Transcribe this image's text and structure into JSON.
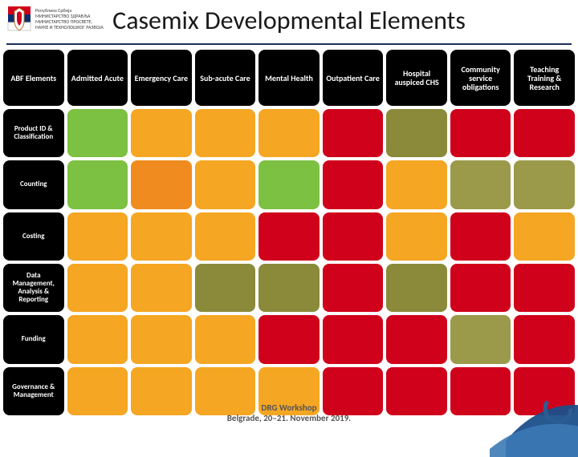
{
  "title": "Casemix Developmental Elements",
  "ministry_lines": [
    "Република Србија",
    "МИНИСТАРСТВО ЗДРАВЉА",
    "МИНИСТАРСТВО ПРОСВЕТЕ,",
    "НАУКЕ И ТЕХНОЛОШКОГ РАЗВОЈА"
  ],
  "footer_line1": "DRG Workshop",
  "footer_line2": "Belgrade, 20–21. November 2019.",
  "colors": {
    "black": "#000000",
    "green": "#7cc142",
    "orange": "#f5a623",
    "orange2": "#f08c1f",
    "red": "#d0021b",
    "olive": "#8a8a3a",
    "olive2": "#9a9a4a",
    "title_underline": "#1c2f5a"
  },
  "columns": [
    {
      "key": "abf",
      "label": "ABF Elements"
    },
    {
      "key": "admitted",
      "label": "Admitted Acute"
    },
    {
      "key": "emergency",
      "label": "Emergency Care"
    },
    {
      "key": "subacute",
      "label": "Sub-acute Care"
    },
    {
      "key": "mental",
      "label": "Mental Health"
    },
    {
      "key": "outpatient",
      "label": "Outpatient Care"
    },
    {
      "key": "hospital",
      "label": "Hospital auspiced CHS"
    },
    {
      "key": "community",
      "label": "Community service obligations"
    },
    {
      "key": "teaching",
      "label": "Teaching Training & Research"
    }
  ],
  "rows": [
    {
      "key": "product",
      "label": "Product ID & Classification"
    },
    {
      "key": "counting",
      "label": "Counting"
    },
    {
      "key": "costing",
      "label": "Costing"
    },
    {
      "key": "data",
      "label": "Data Management, Analysis & Reporting"
    },
    {
      "key": "funding",
      "label": "Funding"
    },
    {
      "key": "governance",
      "label": "Governance & Management"
    }
  ],
  "cells": [
    [
      "#7cc142",
      "#f5a623",
      "#f5a623",
      "#f5a623",
      "#d0021b",
      "#8a8a3a",
      "#d0021b",
      "#d0021b"
    ],
    [
      "#7cc142",
      "#f08c1f",
      "#f5a623",
      "#7cc142",
      "#d0021b",
      "#f5a623",
      "#9a9a4a",
      "#9a9a4a"
    ],
    [
      "#f5a623",
      "#f5a623",
      "#f5a623",
      "#d0021b",
      "#d0021b",
      "#f5a623",
      "#d0021b",
      "#f5a623"
    ],
    [
      "#f5a623",
      "#f5a623",
      "#8a8a3a",
      "#8a8a3a",
      "#d0021b",
      "#8a8a3a",
      "#d0021b",
      "#d0021b"
    ],
    [
      "#f5a623",
      "#f5a623",
      "#f5a623",
      "#d0021b",
      "#d0021b",
      "#d0021b",
      "#9a9a4a",
      "#d0021b"
    ],
    [
      "#f5a623",
      "#f5a623",
      "#f5a623",
      "#f5a623",
      "#d0021b",
      "#d0021b",
      "#d0021b",
      "#d0021b"
    ]
  ]
}
